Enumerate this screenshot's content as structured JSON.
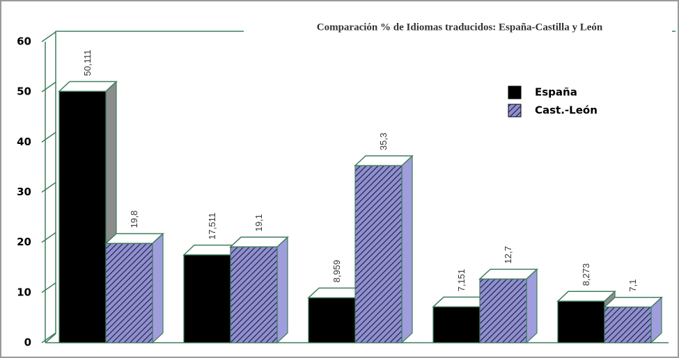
{
  "chart_data": {
    "type": "bar3d",
    "title": "Comparación % de Idiomas traducidos: España-Castilla y León",
    "categories": [
      null,
      null,
      null,
      null,
      null
    ],
    "series": [
      {
        "name": "España",
        "color": "#000000",
        "values": [
          50.111,
          17.511,
          8.959,
          7.151,
          8.273
        ],
        "value_labels": [
          "50,111",
          "17,511",
          "8,959",
          "7,151",
          "8,273"
        ]
      },
      {
        "name": "Cast.-León",
        "color": "#8f8fd0",
        "pattern": "hatch",
        "values": [
          19.8,
          19.1,
          35.3,
          12.7,
          7.1
        ],
        "value_labels": [
          "19,8",
          "19,1",
          "35,3",
          "12,7",
          "7,1"
        ]
      }
    ],
    "ylim": [
      0,
      60
    ],
    "yticks": [
      0,
      10,
      20,
      30,
      40,
      50,
      60
    ],
    "legend": "top-right"
  }
}
